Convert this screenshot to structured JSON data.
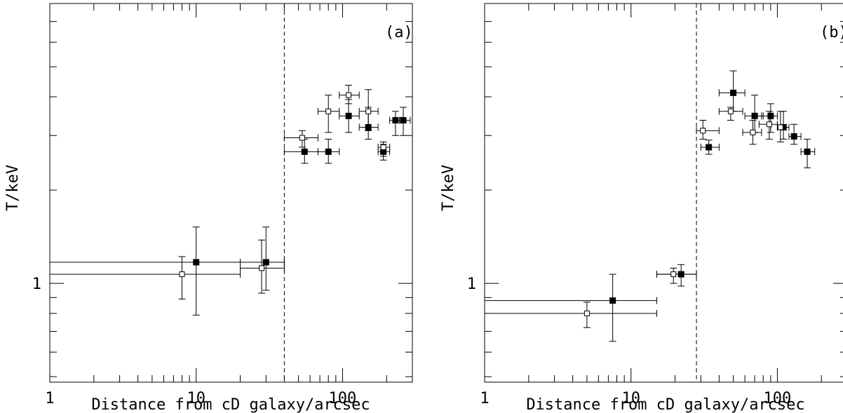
{
  "chart_data": [
    {
      "type": "scatter",
      "panel_label": "(a)",
      "xlabel": "Distance from cD galaxy/arcsec",
      "ylabel": "T/keV",
      "x_scale": "log",
      "y_scale": "log",
      "xlim": [
        1,
        300
      ],
      "ylim": [
        0.48,
        8
      ],
      "x_ticks": [
        1,
        10,
        100
      ],
      "x_tick_labels": [
        "1",
        "10",
        "100"
      ],
      "y_ticks": [
        1
      ],
      "y_tick_labels": [
        "1"
      ],
      "vline_x": 40,
      "series": [
        {
          "marker": "filled-square",
          "points": [
            {
              "x": 10,
              "xlo": 1,
              "xhi": 40,
              "y": 1.17,
              "ylo": 0.79,
              "yhi": 1.52
            },
            {
              "x": 30,
              "xlo": 20,
              "xhi": 40,
              "y": 1.17,
              "ylo": 0.95,
              "yhi": 1.52
            },
            {
              "x": 55,
              "xlo": 40,
              "xhi": 68,
              "y": 2.66,
              "ylo": 2.44,
              "yhi": 2.92
            },
            {
              "x": 80,
              "xlo": 68,
              "xhi": 95,
              "y": 2.66,
              "ylo": 2.44,
              "yhi": 2.92
            },
            {
              "x": 110,
              "xlo": 95,
              "xhi": 130,
              "y": 3.47,
              "ylo": 3.07,
              "yhi": 3.92
            },
            {
              "x": 150,
              "xlo": 130,
              "xhi": 175,
              "y": 3.19,
              "ylo": 2.92,
              "yhi": 3.7
            },
            {
              "x": 190,
              "xlo": 175,
              "xhi": 210,
              "y": 2.66,
              "ylo": 2.5,
              "yhi": 2.81
            },
            {
              "x": 230,
              "xlo": 210,
              "xhi": 250,
              "y": 3.36,
              "ylo": 3.0,
              "yhi": 3.59
            },
            {
              "x": 260,
              "xlo": 245,
              "xhi": 290,
              "y": 3.36,
              "ylo": 3.0,
              "yhi": 3.7
            }
          ]
        },
        {
          "marker": "open-square",
          "points": [
            {
              "x": 8,
              "xlo": 1,
              "xhi": 20,
              "y": 1.07,
              "ylo": 0.89,
              "yhi": 1.22
            },
            {
              "x": 28,
              "xlo": 20,
              "xhi": 40,
              "y": 1.12,
              "ylo": 0.93,
              "yhi": 1.38
            },
            {
              "x": 53,
              "xlo": 40,
              "xhi": 68,
              "y": 2.95,
              "ylo": 2.75,
              "yhi": 3.11
            },
            {
              "x": 80,
              "xlo": 68,
              "xhi": 95,
              "y": 3.59,
              "ylo": 3.07,
              "yhi": 4.05
            },
            {
              "x": 110,
              "xlo": 95,
              "xhi": 130,
              "y": 4.05,
              "ylo": 3.8,
              "yhi": 4.36
            },
            {
              "x": 150,
              "xlo": 130,
              "xhi": 175,
              "y": 3.59,
              "ylo": 3.11,
              "yhi": 4.22
            },
            {
              "x": 190,
              "xlo": 175,
              "xhi": 210,
              "y": 2.75,
              "ylo": 2.57,
              "yhi": 2.86
            }
          ]
        }
      ]
    },
    {
      "type": "scatter",
      "panel_label": "(b)",
      "xlabel": "Distance from cD galaxy/arcsec",
      "ylabel": "T/keV",
      "x_scale": "log",
      "y_scale": "log",
      "xlim": [
        1,
        300
      ],
      "ylim": [
        0.48,
        8
      ],
      "x_ticks": [
        1,
        10,
        100
      ],
      "x_tick_labels": [
        "1",
        "10",
        "100"
      ],
      "y_ticks": [
        1
      ],
      "y_tick_labels": [
        "1"
      ],
      "vline_x": 28,
      "series": [
        {
          "marker": "filled-square",
          "points": [
            {
              "x": 7.5,
              "xlo": 1,
              "xhi": 15,
              "y": 0.88,
              "ylo": 0.65,
              "yhi": 1.07
            },
            {
              "x": 22,
              "xlo": 15,
              "xhi": 28,
              "y": 1.07,
              "ylo": 0.98,
              "yhi": 1.15
            },
            {
              "x": 34,
              "xlo": 30,
              "xhi": 40,
              "y": 2.75,
              "ylo": 2.61,
              "yhi": 2.9
            },
            {
              "x": 50,
              "xlo": 40,
              "xhi": 60,
              "y": 4.12,
              "ylo": 3.59,
              "yhi": 4.85
            },
            {
              "x": 70,
              "xlo": 60,
              "xhi": 80,
              "y": 3.47,
              "ylo": 3.07,
              "yhi": 4.05
            },
            {
              "x": 90,
              "xlo": 78,
              "xhi": 100,
              "y": 3.47,
              "ylo": 3.07,
              "yhi": 3.8
            },
            {
              "x": 110,
              "xlo": 100,
              "xhi": 120,
              "y": 3.19,
              "ylo": 2.92,
              "yhi": 3.59
            },
            {
              "x": 130,
              "xlo": 120,
              "xhi": 145,
              "y": 2.98,
              "ylo": 2.81,
              "yhi": 3.26
            },
            {
              "x": 160,
              "xlo": 145,
              "xhi": 180,
              "y": 2.66,
              "ylo": 2.36,
              "yhi": 2.92
            }
          ]
        },
        {
          "marker": "open-square",
          "points": [
            {
              "x": 5,
              "xlo": 1,
              "xhi": 15,
              "y": 0.8,
              "ylo": 0.72,
              "yhi": 0.87
            },
            {
              "x": 19.5,
              "xlo": 15,
              "xhi": 28,
              "y": 1.07,
              "ylo": 1.0,
              "yhi": 1.12
            },
            {
              "x": 31,
              "xlo": 28,
              "xhi": 40,
              "y": 3.11,
              "ylo": 2.92,
              "yhi": 3.36
            },
            {
              "x": 48,
              "xlo": 40,
              "xhi": 58,
              "y": 3.59,
              "ylo": 3.36,
              "yhi": 3.7
            },
            {
              "x": 68,
              "xlo": 58,
              "xhi": 78,
              "y": 3.07,
              "ylo": 2.81,
              "yhi": 3.36
            },
            {
              "x": 88,
              "xlo": 75,
              "xhi": 100,
              "y": 3.26,
              "ylo": 2.92,
              "yhi": 3.59
            },
            {
              "x": 105,
              "xlo": 100,
              "xhi": 115,
              "y": 3.19,
              "ylo": 2.86,
              "yhi": 3.59
            }
          ]
        }
      ]
    }
  ]
}
